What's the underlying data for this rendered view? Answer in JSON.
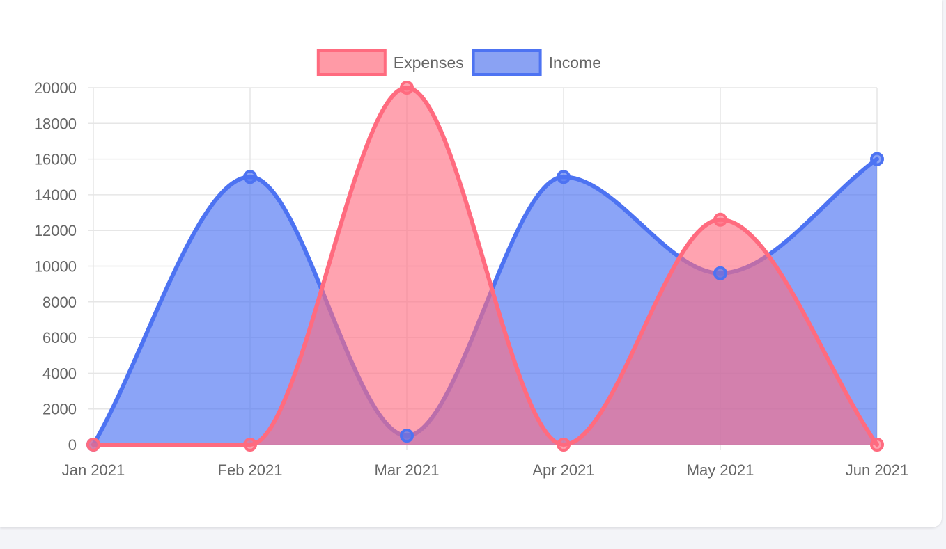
{
  "chart_data": {
    "type": "area",
    "categories": [
      "Jan 2021",
      "Feb 2021",
      "Mar 2021",
      "Apr 2021",
      "May 2021",
      "Jun 2021"
    ],
    "series": [
      {
        "name": "Income",
        "values": [
          0,
          15000,
          500,
          15000,
          9600,
          16000
        ],
        "color": "#4d73f2",
        "fill": "rgba(77,115,242,0.65)"
      },
      {
        "name": "Expenses",
        "values": [
          0,
          0,
          20000,
          0,
          12600,
          0
        ],
        "color": "#ff6b7f",
        "fill": "rgba(255,107,127,0.62)"
      }
    ],
    "legend": [
      {
        "label": "Expenses",
        "color": "#ff6b7f",
        "fill": "#ff9aa6"
      },
      {
        "label": "Income",
        "color": "#4d73f2",
        "fill": "#8aa2f3"
      }
    ],
    "legend_position": "top",
    "ylim": [
      0,
      20000
    ],
    "ytick_step": 2000,
    "grid": true,
    "curve": "smooth"
  }
}
